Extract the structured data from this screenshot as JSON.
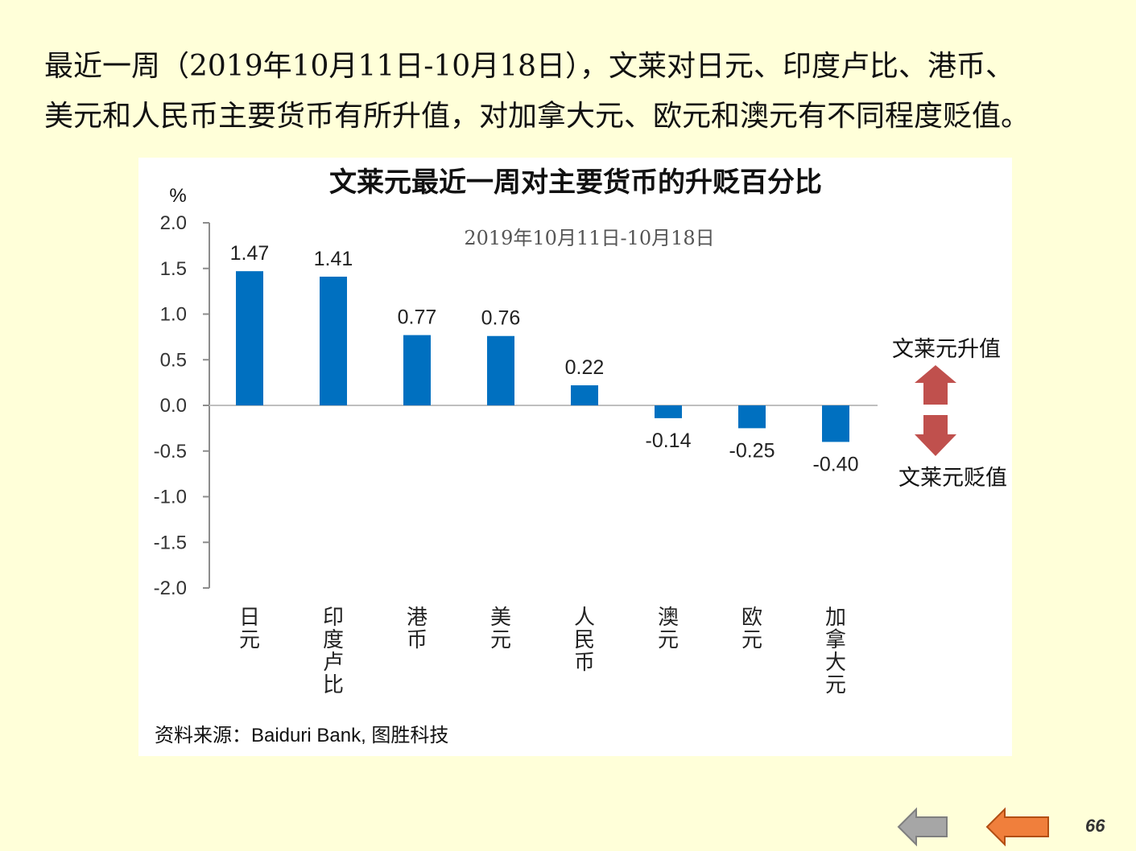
{
  "intro": {
    "line1": "最近一周（2019年10月11日-10月18日），文莱对日元、印度卢比、港币、",
    "line2": "美元和人民币主要货币有所升值，对加拿大元、欧元和澳元有不同程度贬值。"
  },
  "chart_data": {
    "type": "bar",
    "title": "文莱元最近一周对主要货币的升贬百分比",
    "subtitle": "2019年10月11日-10月18日",
    "ylabel": "%",
    "xlabel": "",
    "ylim": [
      -2.0,
      2.0
    ],
    "yticks": [
      "2.0",
      "1.5",
      "1.0",
      "0.5",
      "0.0",
      "-0.5",
      "-1.0",
      "-1.5",
      "-2.0"
    ],
    "categories": [
      "日元",
      "印度卢比",
      "港币",
      "美元",
      "人民币",
      "澳元",
      "欧元",
      "加拿大元"
    ],
    "values": [
      1.47,
      1.41,
      0.77,
      0.76,
      0.22,
      -0.14,
      -0.25,
      -0.4
    ],
    "value_labels": [
      "1.47",
      "1.41",
      "0.77",
      "0.76",
      "0.22",
      "-0.14",
      "-0.25",
      "-0.40"
    ],
    "grid": false,
    "bar_color": "#0070c0"
  },
  "legend": {
    "up_label": "文莱元升值",
    "down_label": "文莱元贬值",
    "arrow_color": "#c0504d"
  },
  "source": "资料来源：Baiduri  Bank,  图胜科技",
  "page_number": "66",
  "nav_colors": {
    "back": "#a6a6a6",
    "forward": "#f07f3c"
  }
}
